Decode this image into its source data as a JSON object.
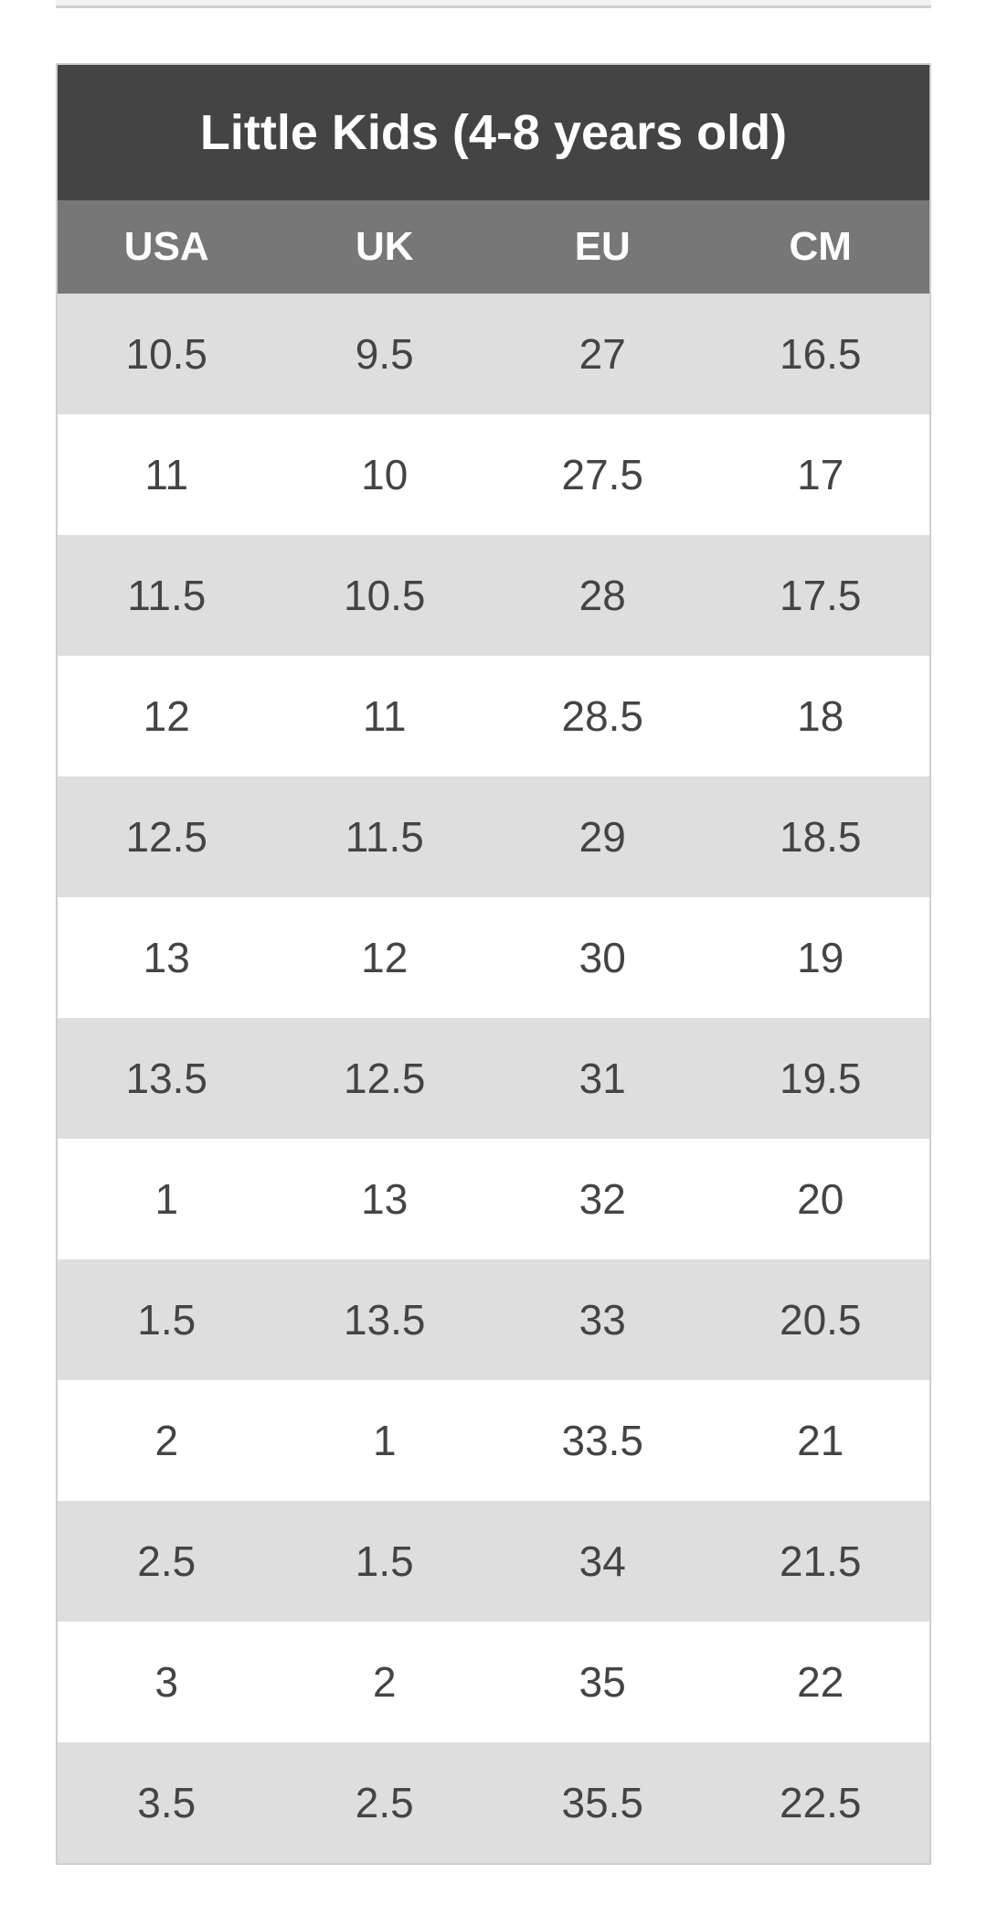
{
  "table": {
    "title": "Little Kids (4-8 years old)",
    "columns": [
      "USA",
      "UK",
      "EU",
      "CM"
    ],
    "rows": [
      [
        "10.5",
        "9.5",
        "27",
        "16.5"
      ],
      [
        "11",
        "10",
        "27.5",
        "17"
      ],
      [
        "11.5",
        "10.5",
        "28",
        "17.5"
      ],
      [
        "12",
        "11",
        "28.5",
        "18"
      ],
      [
        "12.5",
        "11.5",
        "29",
        "18.5"
      ],
      [
        "13",
        "12",
        "30",
        "19"
      ],
      [
        "13.5",
        "12.5",
        "31",
        "19.5"
      ],
      [
        "1",
        "13",
        "32",
        "20"
      ],
      [
        "1.5",
        "13.5",
        "33",
        "20.5"
      ],
      [
        "2",
        "1",
        "33.5",
        "21"
      ],
      [
        "2.5",
        "1.5",
        "34",
        "21.5"
      ],
      [
        "3",
        "2",
        "35",
        "22"
      ],
      [
        "3.5",
        "2.5",
        "35.5",
        "22.5"
      ]
    ]
  }
}
